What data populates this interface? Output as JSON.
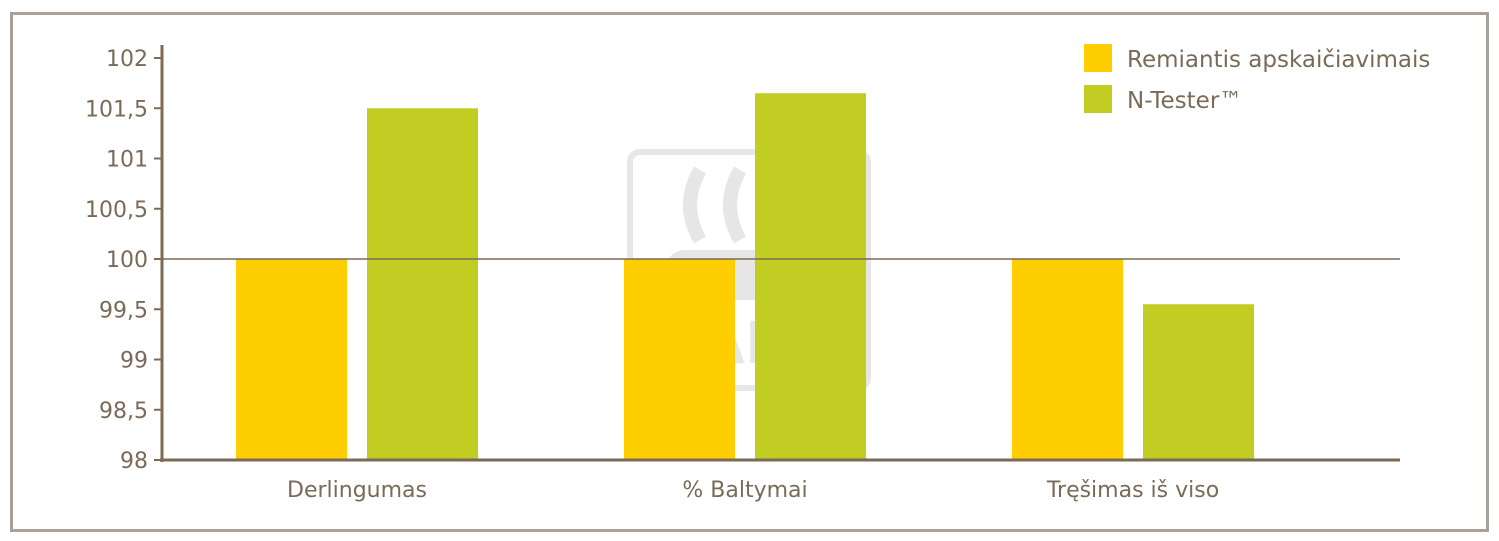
{
  "chart_data": {
    "type": "bar",
    "title": "",
    "xlabel": "",
    "ylabel": "",
    "categories": [
      "Derlingumas",
      "% Baltymai",
      "Tręšimas iš viso"
    ],
    "series": [
      {
        "name": "Remiantis apskaičiavimais",
        "color": "#ffce00",
        "values": [
          100,
          100,
          100
        ]
      },
      {
        "name": "N-Tester™",
        "color": "#c2cd23",
        "values": [
          101.5,
          101.65,
          99.55
        ]
      }
    ],
    "ylim": [
      98,
      102
    ],
    "yticks": [
      98,
      98.5,
      99,
      99.5,
      100,
      100.5,
      101,
      101.5,
      102
    ],
    "ytick_labels": [
      "98",
      "98,5",
      "99",
      "99,5",
      "100",
      "100,5",
      "101",
      "101,5",
      "102"
    ],
    "reference_line": 100,
    "grid": false,
    "legend_position": "top-right",
    "axis_color": "#7d6a56",
    "watermark": "YARA"
  }
}
